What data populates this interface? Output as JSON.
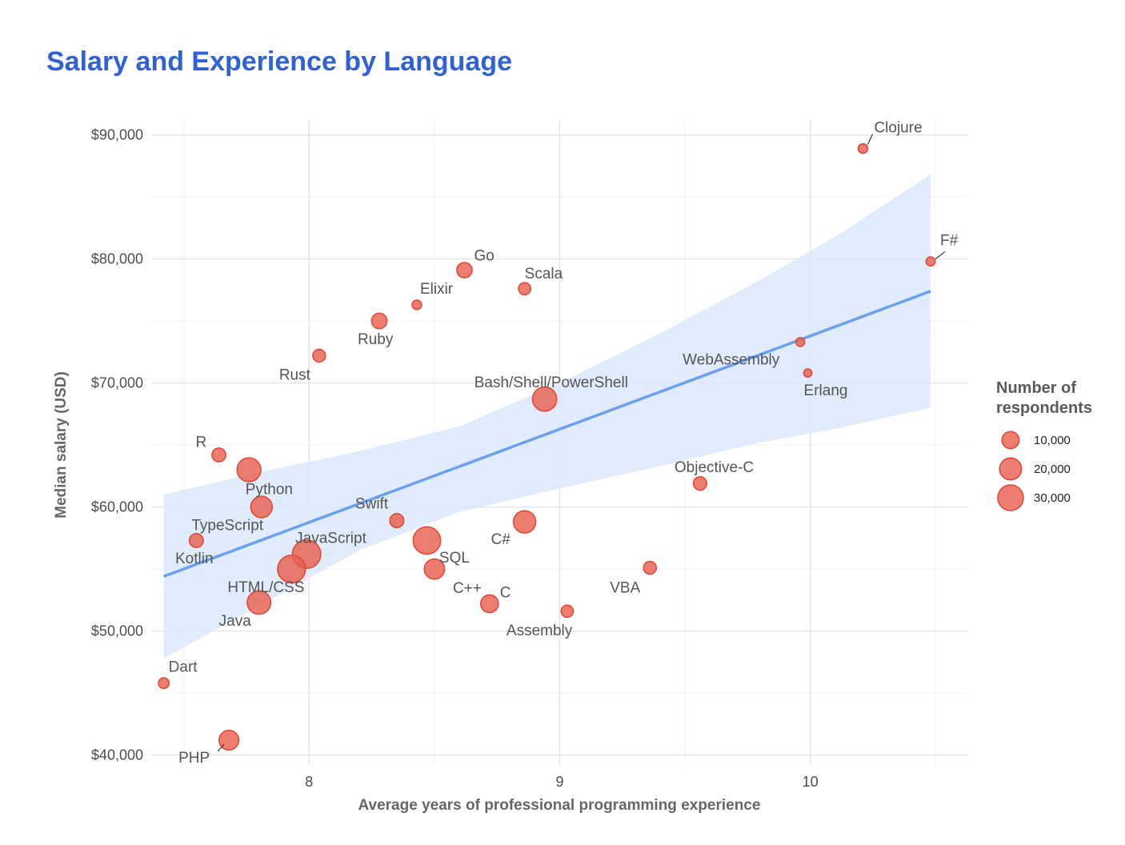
{
  "chart_data": {
    "type": "scatter",
    "title": "Salary and Experience by Language",
    "xlabel": "Average years of professional programming experience",
    "ylabel": "Median salary (USD)",
    "xlim": [
      7.37,
      10.63
    ],
    "ylim": [
      39200,
      91200
    ],
    "x_ticks": [
      8,
      9,
      10
    ],
    "x_tick_labels": [
      "8",
      "9",
      "10"
    ],
    "y_ticks": [
      40000,
      50000,
      60000,
      70000,
      80000,
      90000
    ],
    "y_tick_labels": [
      "$40,000",
      "$50,000",
      "$60,000",
      "$70,000",
      "$80,000",
      "$90,000"
    ],
    "grid": true,
    "point_color": "#e8604f",
    "trend_color": "#6aa0ee",
    "band_color": "#dbe8fb",
    "trend_line": {
      "x": [
        7.42,
        10.48
      ],
      "y": [
        54400,
        77400
      ]
    },
    "confidence_band": {
      "x": [
        7.42,
        7.8,
        8.2,
        8.6,
        9.0,
        9.4,
        9.8,
        10.1,
        10.48
      ],
      "upper": [
        61000,
        62800,
        64500,
        66500,
        70000,
        74000,
        78300,
        81800,
        86800
      ],
      "lower": [
        47800,
        52000,
        56500,
        59600,
        61500,
        63300,
        65200,
        66300,
        68000
      ]
    },
    "points": [
      {
        "name": "Clojure",
        "x": 10.21,
        "y": 88900,
        "respondents": 1200
      },
      {
        "name": "F#",
        "x": 10.48,
        "y": 79800,
        "respondents": 900
      },
      {
        "name": "Go",
        "x": 8.62,
        "y": 79100,
        "respondents": 7000
      },
      {
        "name": "Scala",
        "x": 8.86,
        "y": 77600,
        "respondents": 3300
      },
      {
        "name": "Elixir",
        "x": 8.43,
        "y": 76300,
        "respondents": 1100
      },
      {
        "name": "Ruby",
        "x": 8.28,
        "y": 75000,
        "respondents": 7300
      },
      {
        "name": "Rust",
        "x": 8.04,
        "y": 72200,
        "respondents": 3800
      },
      {
        "name": "WebAssembly",
        "x": 9.96,
        "y": 73300,
        "respondents": 800
      },
      {
        "name": "Erlang",
        "x": 9.99,
        "y": 70800,
        "respondents": 500
      },
      {
        "name": "Bash/Shell/PowerShell",
        "x": 8.94,
        "y": 68700,
        "respondents": 26000
      },
      {
        "name": "R",
        "x": 7.64,
        "y": 64200,
        "respondents": 5000
      },
      {
        "name": "Objective-C",
        "x": 9.56,
        "y": 61900,
        "respondents": 4500
      },
      {
        "name": "",
        "x": 7.76,
        "y": 63000,
        "respondents": 25000
      },
      {
        "name": "Python",
        "x": 7.81,
        "y": 60000,
        "respondents": 19000
      },
      {
        "name": "Swift",
        "x": 8.35,
        "y": 58900,
        "respondents": 5300
      },
      {
        "name": "C#",
        "x": 8.86,
        "y": 58800,
        "respondents": 21000
      },
      {
        "name": "TypeScript",
        "x": 7.55,
        "y": 57300,
        "respondents": 5200
      },
      {
        "name": "JavaScript",
        "x": 7.99,
        "y": 56200,
        "respondents": 39000
      },
      {
        "name": "",
        "x": 8.47,
        "y": 57300,
        "respondents": 36000
      },
      {
        "name": "SQL",
        "x": 8.5,
        "y": 55000,
        "respondents": 16000
      },
      {
        "name": "HTML/CSS",
        "x": 7.93,
        "y": 55000,
        "respondents": 37000
      },
      {
        "name": "VBA",
        "x": 9.36,
        "y": 55100,
        "respondents": 3800
      },
      {
        "name": "Java",
        "x": 7.8,
        "y": 52300,
        "respondents": 24000
      },
      {
        "name": "C",
        "x": 8.72,
        "y": 52200,
        "respondents": 11000
      },
      {
        "name": "Assembly",
        "x": 9.03,
        "y": 51600,
        "respondents": 3200
      },
      {
        "name": "Dart",
        "x": 7.42,
        "y": 45800,
        "respondents": 1900
      },
      {
        "name": "PHP",
        "x": 7.68,
        "y": 41200,
        "respondents": 15000
      }
    ],
    "extra_labels": [
      "Kotlin",
      "C++"
    ],
    "legend": {
      "title_line1": "Number of",
      "title_line2": "respondents",
      "placement": "right",
      "entries": [
        {
          "value": 10000,
          "label": "10,000"
        },
        {
          "value": 20000,
          "label": "20,000"
        },
        {
          "value": 30000,
          "label": "30,000"
        }
      ]
    }
  }
}
